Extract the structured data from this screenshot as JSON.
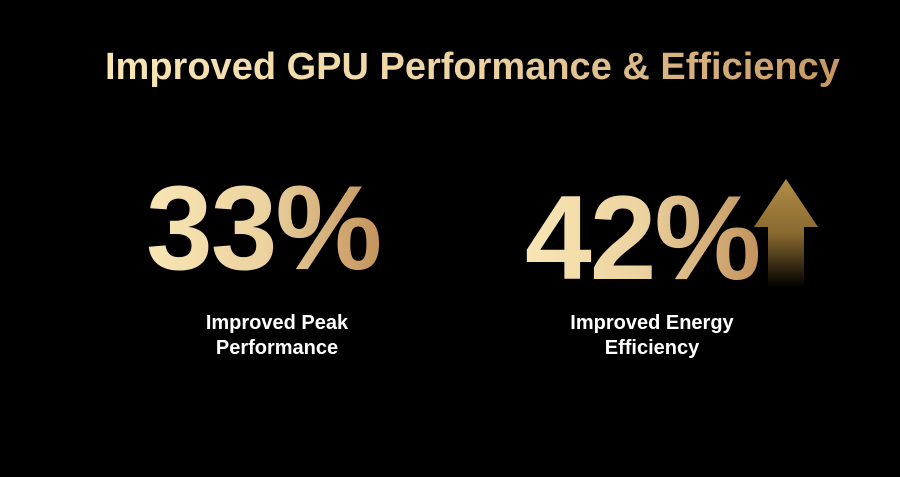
{
  "slide": {
    "title": "Improved GPU Performance & Efficiency",
    "stats": [
      {
        "value": "33%",
        "label_line1": "Improved Peak",
        "label_line2": "Performance"
      },
      {
        "value": "42%",
        "label_line1": "Improved Energy",
        "label_line2": "Efficiency",
        "indicator": "arrow-up-icon"
      }
    ],
    "colors": {
      "gold_light": "#f8e6b4",
      "gold_dark": "#c4935c",
      "arrow": "#a8843f",
      "background": "#000000"
    }
  }
}
